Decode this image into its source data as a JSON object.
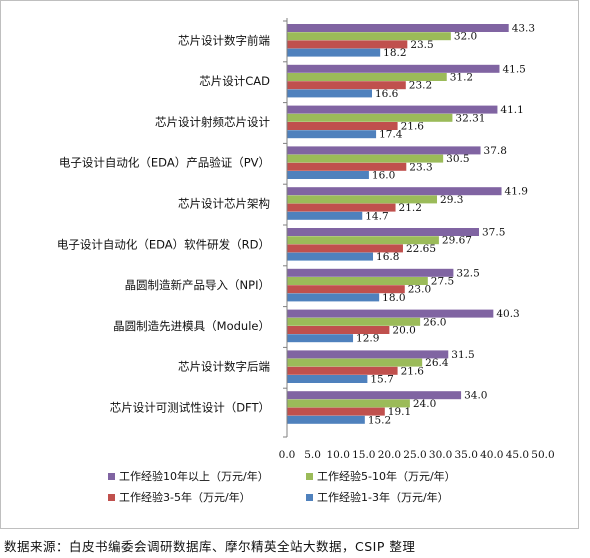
{
  "chart_data": {
    "type": "bar",
    "orientation": "horizontal",
    "title": "",
    "xlabel": "",
    "ylabel": "",
    "xlim": [
      0.0,
      50.0
    ],
    "xticks": [
      "0.0",
      "5.0",
      "10.0",
      "15.0",
      "20.0",
      "25.0",
      "30.0",
      "35.0",
      "40.0",
      "45.0",
      "50.0"
    ],
    "grid": false,
    "legend_position": "bottom",
    "categories": [
      "芯片设计数字前端",
      "芯片设计CAD",
      "芯片设计射频芯片设计",
      "电子设计自动化（EDA）产品验证（PV）",
      "芯片设计芯片架构",
      "电子设计自动化（EDA）软件研发（RD）",
      "晶圆制造新产品导入（NPI）",
      "晶圆制造先进模具（Module）",
      "芯片设计数字后端",
      "芯片设计可测试性设计（DFT）"
    ],
    "series": [
      {
        "name": "工作经验10年以上（万元/年）",
        "color": "#8064A2",
        "values": [
          43.3,
          41.5,
          41.1,
          37.8,
          41.9,
          37.5,
          32.5,
          40.3,
          31.5,
          34.0
        ],
        "labels": [
          "43.3",
          "41.5",
          "41.1",
          "37.8",
          "41.9",
          "37.5",
          "32.5",
          "40.3",
          "31.5",
          "34.0"
        ]
      },
      {
        "name": "工作经验5-10年（万元/年）",
        "color": "#9BBB59",
        "values": [
          32.0,
          31.2,
          32.31,
          30.5,
          29.3,
          29.67,
          27.5,
          26.0,
          26.4,
          24.0
        ],
        "labels": [
          "32.0",
          "31.2",
          "32.31",
          "30.5",
          "29.3",
          "29.67",
          "27.5",
          "26.0",
          "26.4",
          "24.0"
        ]
      },
      {
        "name": "工作经验3-5年（万元/年）",
        "color": "#C0504D",
        "values": [
          23.5,
          23.2,
          21.6,
          23.3,
          21.2,
          22.65,
          23.0,
          20.0,
          21.6,
          19.1
        ],
        "labels": [
          "23.5",
          "23.2",
          "21.6",
          "23.3",
          "21.2",
          "22.65",
          "23.0",
          "20.0",
          "21.6",
          "19.1"
        ]
      },
      {
        "name": "工作经验1-3年（万元/年）",
        "color": "#4F81BD",
        "values": [
          18.2,
          16.6,
          17.4,
          16.0,
          14.7,
          16.8,
          18.0,
          12.9,
          15.7,
          15.2
        ],
        "labels": [
          "18.2",
          "16.6",
          "17.4",
          "16.0",
          "14.7",
          "16.8",
          "18.0",
          "12.9",
          "15.7",
          "15.2"
        ]
      }
    ]
  },
  "source_note": "数据来源：白皮书编委会调研数据库、摩尔精英全站大数据，CSIP 整理"
}
